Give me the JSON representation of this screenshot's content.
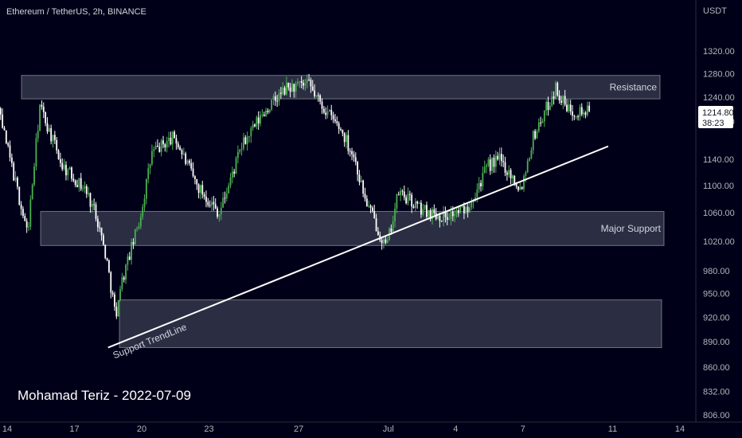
{
  "header": {
    "symbol_title": "Ethereum / TetherUS, 2h, BINANCE"
  },
  "currency": "USDT",
  "author_note": "Mohamad Teriz - 2022-07-09",
  "colors": {
    "background": "#000018",
    "up": "#4caf50",
    "down": "#ffffff",
    "zone_fill": "#3a3d52",
    "zone_stroke": "#b8bac6",
    "trendline": "#ffffff",
    "axis_line": "#2a2e39",
    "price_tag_bg": "#ffffff"
  },
  "current_price": {
    "value": "1214.80",
    "countdown": "38:23"
  },
  "chart_data": {
    "type": "candlestick",
    "title": "Ethereum / TetherUS, 2h, BINANCE",
    "y_axis": {
      "unit": "USDT",
      "scale": "log",
      "ticks": [
        "1320.00",
        "1280.00",
        "1240.00",
        "1200.00",
        "1140.00",
        "1100.00",
        "1060.00",
        "1020.00",
        "980.00",
        "950.00",
        "920.00",
        "890.00",
        "860.00",
        "832.00",
        "806.00"
      ]
    },
    "x_axis": {
      "ticks": [
        "14",
        "17",
        "20",
        "23",
        "27",
        "Jul",
        "4",
        "7",
        "11",
        "14"
      ]
    },
    "zones": [
      {
        "label": "Resistance",
        "low": 1237,
        "high": 1277
      },
      {
        "label": "Major Support",
        "low": 1014,
        "high": 1062
      },
      {
        "label": "",
        "low": 883,
        "high": 942
      }
    ],
    "trendline": {
      "label": "Support TrendLine",
      "from": {
        "date": "Jun 18",
        "price": 883
      },
      "to": {
        "date": "Jul 10",
        "price": 1160
      }
    },
    "anchors": [
      [
        "Jun 12",
        1225
      ],
      [
        "Jun 13",
        1245
      ],
      [
        "Jun 14",
        1165
      ],
      [
        "Jun 14",
        1030
      ],
      [
        "Jun 15",
        1225
      ],
      [
        "Jun 16",
        1130
      ],
      [
        "Jun 17",
        1095
      ],
      [
        "Jun 18",
        1060
      ],
      [
        "Jun 18",
        995
      ],
      [
        "Jun 18",
        910
      ],
      [
        "Jun 19",
        950
      ],
      [
        "Jun 19",
        1050
      ],
      [
        "Jun 20",
        1150
      ],
      [
        "Jun 21",
        1175
      ],
      [
        "Jun 22",
        1100
      ],
      [
        "Jun 23",
        1060
      ],
      [
        "Jun 24",
        1160
      ],
      [
        "Jun 25",
        1215
      ],
      [
        "Jun 26",
        1255
      ],
      [
        "Jun 27",
        1260
      ],
      [
        "Jun 28",
        1230
      ],
      [
        "Jun 28",
        1185
      ],
      [
        "Jun 29",
        1145
      ],
      [
        "Jun 30",
        1080
      ],
      [
        "Jun 30",
        1010
      ],
      [
        "Jul 1",
        1090
      ],
      [
        "Jul 2",
        1065
      ],
      [
        "Jul 3",
        1055
      ],
      [
        "Jul 4",
        1065
      ],
      [
        "Jul 5",
        1130
      ],
      [
        "Jul 6",
        1140
      ],
      [
        "Jul 6",
        1095
      ],
      [
        "Jul 7",
        1175
      ],
      [
        "Jul 8",
        1255
      ],
      [
        "Jul 9",
        1220
      ],
      [
        "Jul 9",
        1214.8
      ]
    ]
  }
}
